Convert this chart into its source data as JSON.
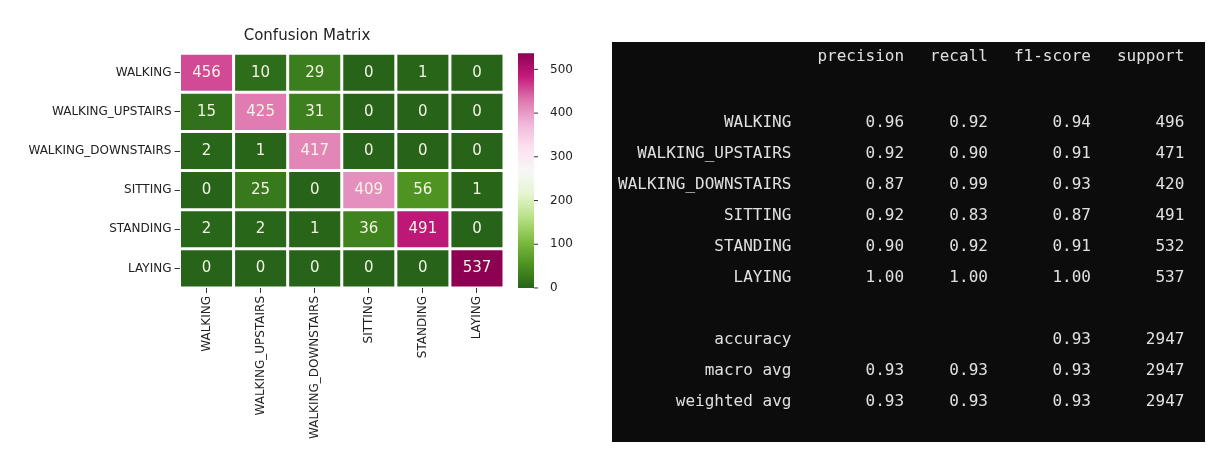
{
  "chart_data": [
    {
      "type": "heatmap",
      "title": "Confusion Matrix",
      "categories": [
        "WALKING",
        "WALKING_UPSTAIRS",
        "WALKING_DOWNSTAIRS",
        "SITTING",
        "STANDING",
        "LAYING"
      ],
      "y_categories": [
        "WALKING",
        "WALKING_UPSTAIRS",
        "WALKING_DOWNSTAIRS",
        "SITTING",
        "STANDING",
        "LAYING"
      ],
      "cells": [
        [
          456,
          10,
          29,
          0,
          1,
          0
        ],
        [
          15,
          425,
          31,
          0,
          0,
          0
        ],
        [
          2,
          1,
          417,
          0,
          0,
          0
        ],
        [
          0,
          25,
          0,
          409,
          56,
          1
        ],
        [
          2,
          2,
          1,
          36,
          491,
          0
        ],
        [
          0,
          0,
          0,
          0,
          0,
          537
        ]
      ],
      "clim": [
        0,
        537
      ],
      "cticks": [
        0,
        100,
        200,
        300,
        400,
        500
      ],
      "data_labels": true
    },
    {
      "type": "other",
      "categories": [
        "precision",
        "recall",
        "f1-score",
        "support"
      ],
      "y_categories": [
        "WALKING",
        "WALKING_UPSTAIRS",
        "WALKING_DOWNSTAIRS",
        "SITTING",
        "STANDING",
        "LAYING",
        null,
        "accuracy",
        "macro avg",
        "weighted avg"
      ],
      "cell_labels": [
        [
          "0.96",
          "0.92",
          "0.94",
          "496"
        ],
        [
          "0.92",
          "0.90",
          "0.91",
          "471"
        ],
        [
          "0.87",
          "0.99",
          "0.93",
          "420"
        ],
        [
          "0.92",
          "0.83",
          "0.87",
          "491"
        ],
        [
          "0.90",
          "0.92",
          "0.91",
          "532"
        ],
        [
          "1.00",
          "1.00",
          "1.00",
          "537"
        ],
        [
          null,
          null,
          null,
          null
        ],
        [
          null,
          null,
          "0.93",
          "2947"
        ],
        [
          "0.93",
          "0.93",
          "0.93",
          "2947"
        ],
        [
          "0.93",
          "0.93",
          "0.93",
          "2947"
        ]
      ]
    }
  ]
}
